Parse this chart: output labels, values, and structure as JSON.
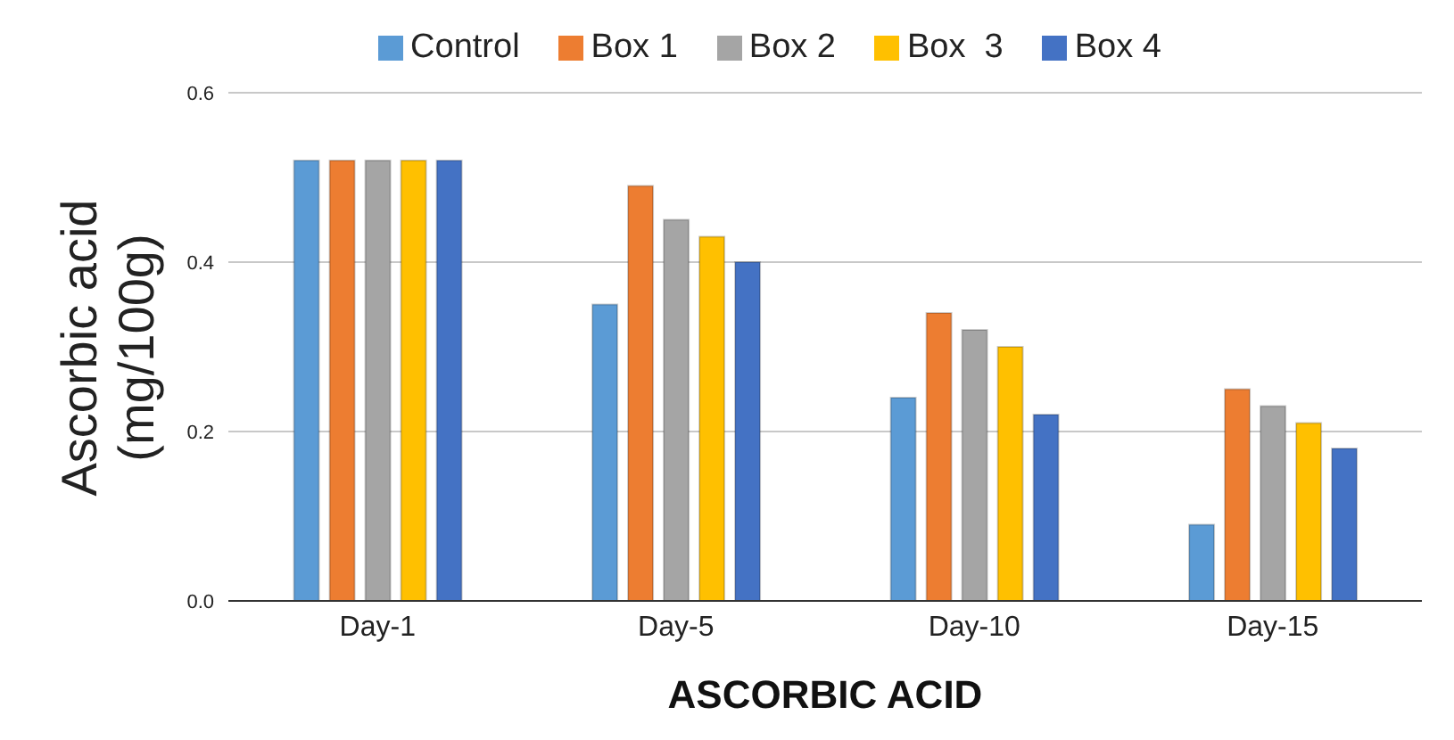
{
  "chart_data": {
    "type": "bar",
    "xlabel": "ASCORBIC ACID",
    "ylabel": "Ascorbic acid (mg/100g)",
    "categories": [
      "Day-1",
      "Day-5",
      "Day-10",
      "Day-15"
    ],
    "series": [
      {
        "name": "Control",
        "color": "#5b9bd5",
        "values": [
          0.52,
          0.35,
          0.24,
          0.09
        ]
      },
      {
        "name": "Box 1",
        "color": "#ed7d31",
        "values": [
          0.52,
          0.49,
          0.34,
          0.25
        ]
      },
      {
        "name": "Box 2",
        "color": "#a5a5a5",
        "values": [
          0.52,
          0.45,
          0.32,
          0.23
        ]
      },
      {
        "name": "Box  3",
        "color": "#ffc000",
        "values": [
          0.52,
          0.43,
          0.3,
          0.21
        ]
      },
      {
        "name": "Box 4",
        "color": "#4472c4",
        "values": [
          0.52,
          0.4,
          0.22,
          0.18
        ]
      }
    ],
    "ylim": [
      0,
      0.6
    ],
    "yticks": [
      {
        "value": 0,
        "label": "0.0"
      },
      {
        "value": 0.2,
        "label": "0.2"
      },
      {
        "value": 0.4,
        "label": "0.4"
      },
      {
        "value": 0.6,
        "label": "0.6"
      }
    ],
    "grid": "y",
    "legend": "top"
  }
}
